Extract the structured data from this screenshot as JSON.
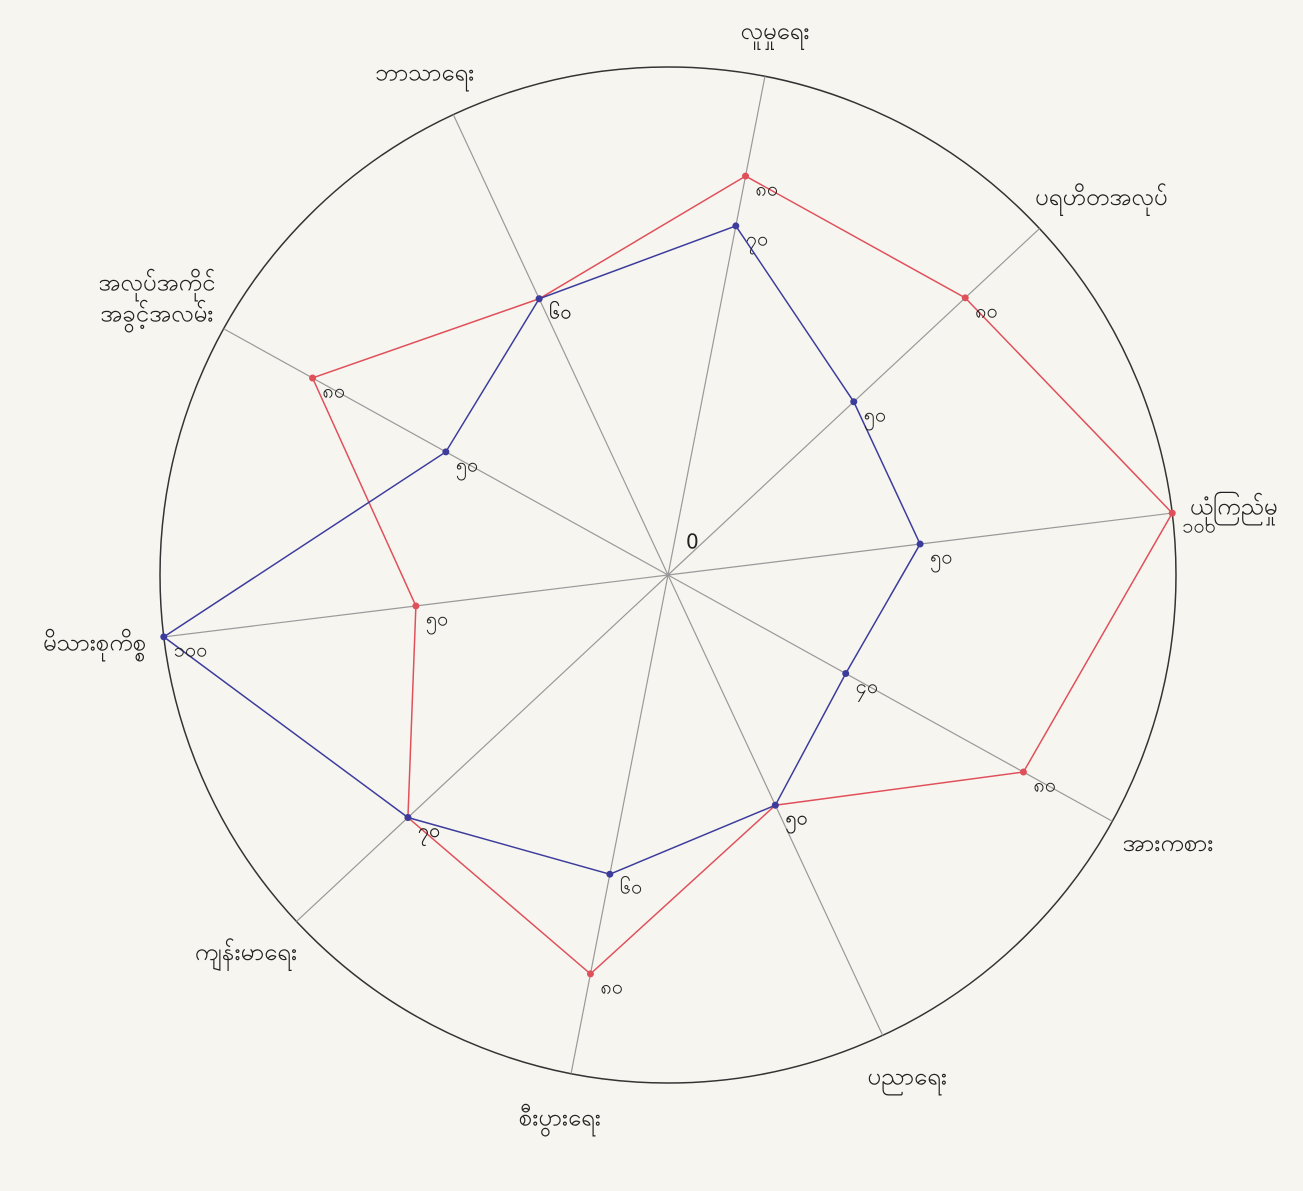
{
  "chart_data": {
    "type": "radar",
    "categories": [
      "လူမှုရေး",
      "ပရဟိတအလုပ်",
      "ယုံကြည်မှု",
      "အားကစား",
      "ပညာရေး",
      "စီးပွားရေး",
      "ကျန်းမာရေး",
      "မိသားစုကိစ္စ",
      "အလုပ်အကိုင်\nအခွင့်အလမ်း",
      "ဘာသာရေး"
    ],
    "series": [
      {
        "color": "#e0505a",
        "values": [
          80,
          80,
          100,
          80,
          50,
          80,
          70,
          50,
          80,
          60
        ],
        "value_labels": [
          "၈၀",
          "၈၀",
          "၁၀၀",
          "၈၀",
          "၅၀",
          "၈၀",
          "၇၀",
          "၅၀",
          "၈၀",
          "၆၀"
        ]
      },
      {
        "color": "#3c3c9c",
        "values": [
          70,
          50,
          50,
          40,
          50,
          60,
          70,
          100,
          50,
          60
        ],
        "value_labels": [
          "၇၀",
          "၅၀",
          "၅၀",
          "၄၀",
          "၅၀",
          "၆၀",
          "၇၀",
          "၁၀၀",
          "၅၀",
          "၆၀"
        ]
      }
    ],
    "rlim": [
      0,
      100
    ],
    "rticks": [
      0
    ]
  }
}
